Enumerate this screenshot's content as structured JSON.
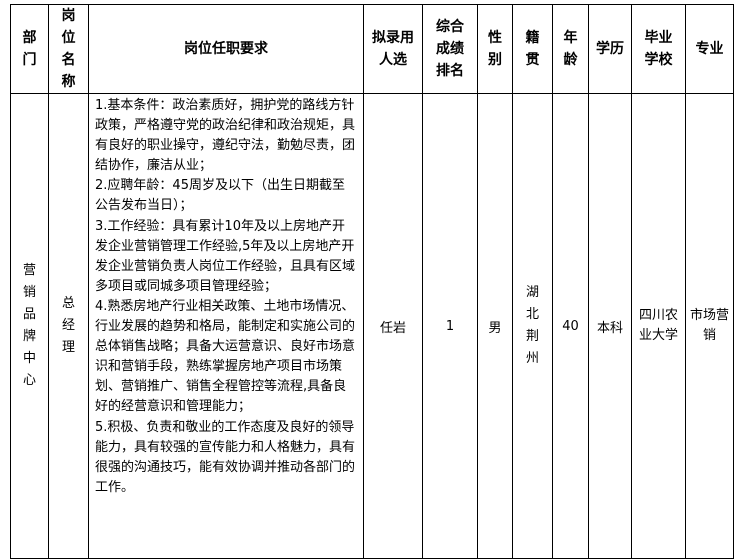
{
  "headers": {
    "dept": "部门",
    "position": "岗位名称",
    "requirements": "岗位任职要求",
    "candidate": "拟录用人选",
    "rank": "综合成绩排名",
    "gender": "性别",
    "origin": "籍贯",
    "age": "年龄",
    "education": "学历",
    "school": "毕业学校",
    "major": "专业"
  },
  "row": {
    "dept": "营销品牌中心",
    "position": "总经理",
    "requirements": [
      "1.基本条件：政治素质好，拥护党的路线方针政策，严格遵守党的政治纪律和政治规矩，具有良好的职业操守，遵纪守法，勤勉尽责，团结协作，廉洁从业；",
      "2.应聘年龄：45周岁及以下（出生日期截至公告发布当日）；",
      "3.工作经验：具有累计10年及以上房地产开发企业营销管理工作经验,5年及以上房地产开发企业营销负责人岗位工作经验，且具有区域多项目或同城多项目管理经验；",
      "4.熟悉房地产行业相关政策、土地市场情况、行业发展的趋势和格局，能制定和实施公司的总体销售战略；具备大运营意识、良好市场意识和营销手段，熟练掌握房地产项目市场策划、营销推广、销售全程管控等流程,具备良好的经营意识和管理能力；",
      "5.积极、负责和敬业的工作态度及良好的领导能力，具有较强的宣传能力和人格魅力，具有很强的沟通技巧，能有效协调并推动各部门的工作。"
    ],
    "candidate": "任岩",
    "rank": "1",
    "gender": "男",
    "origin": "湖北荆州",
    "age": "40",
    "education": "本科",
    "school": "四川农业大学",
    "major": "市场营销"
  }
}
